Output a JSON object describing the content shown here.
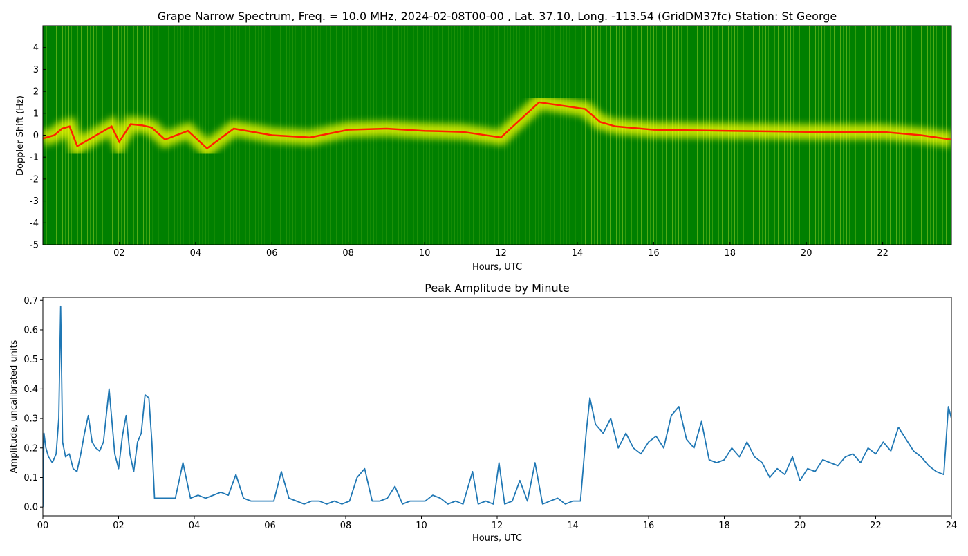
{
  "chart_data": [
    {
      "type": "heatmap",
      "title": "Grape Narrow Spectrum, Freq. = 10.0 MHz, 2024-02-08T00-00 , Lat.  37.10, Long. -113.54 (GridDM37fc) Station: St George",
      "xlabel": "Hours, UTC",
      "ylabel": "Doppler Shift (Hz)",
      "xlim": [
        0,
        23.8
      ],
      "ylim": [
        -5,
        5
      ],
      "xticks": [
        "02",
        "04",
        "06",
        "08",
        "10",
        "12",
        "14",
        "16",
        "18",
        "20",
        "22"
      ],
      "yticks": [
        "-5",
        "-4",
        "-3",
        "-2",
        "-1",
        "0",
        "1",
        "2",
        "3",
        "4"
      ],
      "background_color": "#008000",
      "trace_color": "#ff2000",
      "glow_color": "#ffff00",
      "regions": [
        {
          "x_start": 0,
          "x_end": 2.85,
          "intensity": "high"
        },
        {
          "x_start": 2.85,
          "x_end": 14.2,
          "intensity": "low"
        },
        {
          "x_start": 14.2,
          "x_end": 23.8,
          "intensity": "high"
        }
      ],
      "doppler_trace": [
        {
          "x": 0.0,
          "y": -0.15
        },
        {
          "x": 0.3,
          "y": 0.0
        },
        {
          "x": 0.5,
          "y": 0.3
        },
        {
          "x": 0.7,
          "y": 0.4
        },
        {
          "x": 0.9,
          "y": -0.5
        },
        {
          "x": 1.2,
          "y": -0.2
        },
        {
          "x": 1.5,
          "y": 0.1
        },
        {
          "x": 1.8,
          "y": 0.4
        },
        {
          "x": 2.0,
          "y": -0.3
        },
        {
          "x": 2.3,
          "y": 0.5
        },
        {
          "x": 2.6,
          "y": 0.45
        },
        {
          "x": 2.85,
          "y": 0.35
        },
        {
          "x": 3.2,
          "y": -0.2
        },
        {
          "x": 3.8,
          "y": 0.2
        },
        {
          "x": 4.3,
          "y": -0.6
        },
        {
          "x": 5.0,
          "y": 0.3
        },
        {
          "x": 6.0,
          "y": 0.0
        },
        {
          "x": 7.0,
          "y": -0.1
        },
        {
          "x": 8.0,
          "y": 0.25
        },
        {
          "x": 9.0,
          "y": 0.3
        },
        {
          "x": 10.0,
          "y": 0.2
        },
        {
          "x": 11.0,
          "y": 0.15
        },
        {
          "x": 12.0,
          "y": -0.1
        },
        {
          "x": 13.0,
          "y": 1.5
        },
        {
          "x": 14.2,
          "y": 1.2
        },
        {
          "x": 14.6,
          "y": 0.6
        },
        {
          "x": 15.0,
          "y": 0.4
        },
        {
          "x": 16.0,
          "y": 0.25
        },
        {
          "x": 18.0,
          "y": 0.2
        },
        {
          "x": 20.0,
          "y": 0.15
        },
        {
          "x": 22.0,
          "y": 0.15
        },
        {
          "x": 23.0,
          "y": 0.0
        },
        {
          "x": 23.8,
          "y": -0.2
        }
      ]
    },
    {
      "type": "line",
      "title": "Peak Amplitude by Minute",
      "xlabel": "Hours, UTC",
      "ylabel": "Amplitude, uncalibrated units",
      "xlim": [
        0,
        24
      ],
      "ylim": [
        -0.03,
        0.71
      ],
      "xticks": [
        "00",
        "02",
        "04",
        "06",
        "08",
        "10",
        "12",
        "14",
        "16",
        "18",
        "20",
        "22",
        "24"
      ],
      "yticks": [
        "0.0",
        "0.1",
        "0.2",
        "0.3",
        "0.4",
        "0.5",
        "0.6",
        "0.7"
      ],
      "line_color": "#1f77b4",
      "series": [
        {
          "x": [
            0.0,
            0.03,
            0.08,
            0.15,
            0.25,
            0.35,
            0.42,
            0.47,
            0.52,
            0.6,
            0.7,
            0.8,
            0.9,
            1.0,
            1.1,
            1.2,
            1.3,
            1.4,
            1.5,
            1.6,
            1.75,
            1.9,
            2.0,
            2.1,
            2.2,
            2.3,
            2.4,
            2.5,
            2.6,
            2.7,
            2.8,
            2.88,
            2.95,
            3.1,
            3.3,
            3.5,
            3.7,
            3.9,
            4.1,
            4.3,
            4.5,
            4.7,
            4.9,
            5.1,
            5.3,
            5.5,
            5.7,
            5.9,
            6.1,
            6.3,
            6.5,
            6.7,
            6.9,
            7.1,
            7.3,
            7.5,
            7.7,
            7.9,
            8.1,
            8.3,
            8.5,
            8.7,
            8.9,
            9.1,
            9.3,
            9.5,
            9.7,
            9.9,
            10.1,
            10.3,
            10.5,
            10.7,
            10.9,
            11.1,
            11.35,
            11.5,
            11.7,
            11.9,
            12.05,
            12.2,
            12.4,
            12.6,
            12.8,
            13.0,
            13.2,
            13.4,
            13.6,
            13.8,
            14.0,
            14.2,
            14.35,
            14.45,
            14.6,
            14.8,
            15.0,
            15.2,
            15.4,
            15.6,
            15.8,
            16.0,
            16.2,
            16.4,
            16.6,
            16.8,
            17.0,
            17.2,
            17.4,
            17.6,
            17.8,
            18.0,
            18.2,
            18.4,
            18.6,
            18.8,
            19.0,
            19.2,
            19.4,
            19.6,
            19.8,
            20.0,
            20.2,
            20.4,
            20.6,
            20.8,
            21.0,
            21.2,
            21.4,
            21.6,
            21.8,
            22.0,
            22.2,
            22.4,
            22.6,
            22.8,
            23.0,
            23.2,
            23.4,
            23.6,
            23.8,
            23.92,
            24.0
          ],
          "y": [
            0.0,
            0.25,
            0.2,
            0.17,
            0.15,
            0.18,
            0.3,
            0.68,
            0.22,
            0.17,
            0.18,
            0.13,
            0.12,
            0.18,
            0.25,
            0.31,
            0.22,
            0.2,
            0.19,
            0.22,
            0.4,
            0.18,
            0.13,
            0.24,
            0.31,
            0.18,
            0.12,
            0.22,
            0.25,
            0.38,
            0.37,
            0.22,
            0.03,
            0.03,
            0.03,
            0.03,
            0.15,
            0.03,
            0.04,
            0.03,
            0.04,
            0.05,
            0.04,
            0.11,
            0.03,
            0.02,
            0.02,
            0.02,
            0.02,
            0.12,
            0.03,
            0.02,
            0.01,
            0.02,
            0.02,
            0.01,
            0.02,
            0.01,
            0.02,
            0.1,
            0.13,
            0.02,
            0.02,
            0.03,
            0.07,
            0.01,
            0.02,
            0.02,
            0.02,
            0.04,
            0.03,
            0.01,
            0.02,
            0.01,
            0.12,
            0.01,
            0.02,
            0.01,
            0.15,
            0.01,
            0.02,
            0.09,
            0.02,
            0.15,
            0.01,
            0.02,
            0.03,
            0.01,
            0.02,
            0.02,
            0.25,
            0.37,
            0.28,
            0.25,
            0.3,
            0.2,
            0.25,
            0.2,
            0.18,
            0.22,
            0.24,
            0.2,
            0.31,
            0.34,
            0.23,
            0.2,
            0.29,
            0.16,
            0.15,
            0.16,
            0.2,
            0.17,
            0.22,
            0.17,
            0.15,
            0.1,
            0.13,
            0.11,
            0.17,
            0.09,
            0.13,
            0.12,
            0.16,
            0.15,
            0.14,
            0.17,
            0.18,
            0.15,
            0.2,
            0.18,
            0.22,
            0.19,
            0.27,
            0.23,
            0.19,
            0.17,
            0.14,
            0.12,
            0.11,
            0.34,
            0.3
          ]
        }
      ]
    }
  ]
}
